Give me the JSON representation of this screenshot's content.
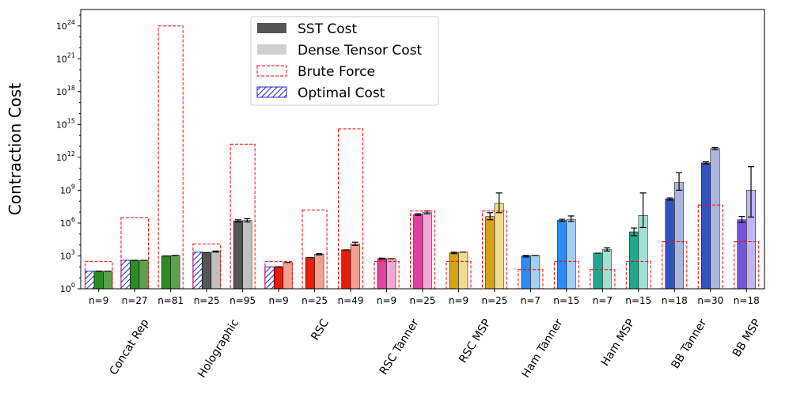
{
  "chart_data": {
    "type": "bar",
    "yscale": "log",
    "ylabel": "Contraction Cost",
    "ylim_exp": [
      0,
      25.5
    ],
    "yticks_exp": [
      0,
      3,
      6,
      9,
      12,
      15,
      18,
      21,
      24
    ],
    "ytick_labels": [
      "10",
      "10",
      "10",
      "10",
      "10",
      "10",
      "10",
      "10",
      "10"
    ],
    "ytick_sups": [
      "0",
      "3",
      "6",
      "9",
      "12",
      "15",
      "18",
      "21",
      "24"
    ],
    "legend": {
      "position": "upper-center",
      "entries": [
        {
          "label": "SST Cost",
          "style": "solid-dark"
        },
        {
          "label": "Dense Tensor Cost",
          "style": "solid-light"
        },
        {
          "label": "Brute Force",
          "style": "dashed-red"
        },
        {
          "label": "Optimal Cost",
          "style": "hatched-blue"
        }
      ]
    },
    "groups": [
      {
        "name": "Concat Rep",
        "color": "#2e8b22",
        "light": "#5fa050"
      },
      {
        "name": "Holographic",
        "color": "#555555",
        "light": "#c0c0c0"
      },
      {
        "name": "RSC",
        "color": "#e41e0a",
        "light": "#f4a090"
      },
      {
        "name": "RSC Tanner",
        "color": "#e0409f",
        "light": "#f2a6d4"
      },
      {
        "name": "RSC MSP",
        "color": "#d6a218",
        "light": "#efdc92"
      },
      {
        "name": "Ham Tanner",
        "color": "#2f8bf0",
        "light": "#a6cdf3"
      },
      {
        "name": "Ham MSP",
        "color": "#1fa88e",
        "light": "#a4dfd3"
      },
      {
        "name": "BB Tanner",
        "color": "#3355bb",
        "light": "#aab6df"
      },
      {
        "name": "BB MSP",
        "color": "#7455d8",
        "light": "#c2b5ee"
      }
    ],
    "categories": [
      {
        "n": "n=9",
        "group": "Concat Rep",
        "sst": 1.6,
        "sst_err": [
          1.6,
          1.6
        ],
        "dense": 1.6,
        "dense_err": null,
        "brute": 2.5,
        "optimal": 1.6
      },
      {
        "n": "n=27",
        "group": "Concat Rep",
        "sst": 2.6,
        "sst_err": null,
        "dense": 2.6,
        "dense_err": null,
        "brute": 6.5,
        "optimal": 2.6
      },
      {
        "n": "n=81",
        "group": "Concat Rep",
        "sst": 3.0,
        "sst_err": null,
        "dense": 3.05,
        "dense_err": null,
        "brute": 24.0,
        "optimal": null
      },
      {
        "n": "n=25",
        "group": "Holographic",
        "sst": 3.3,
        "sst_err": [
          3.3,
          3.3
        ],
        "dense": 3.4,
        "dense_err": [
          3.35,
          3.45
        ],
        "brute": 4.1,
        "optimal": 3.35
      },
      {
        "n": "n=95",
        "group": "Holographic",
        "sst": 6.2,
        "sst_err": [
          6.1,
          6.3
        ],
        "dense": 6.25,
        "dense_err": [
          6.1,
          6.4
        ],
        "brute": 13.2,
        "optimal": null
      },
      {
        "n": "n=9",
        "group": "RSC",
        "sst": 2.0,
        "sst_err": [
          2.0,
          2.0
        ],
        "dense": 2.4,
        "dense_err": null,
        "brute": 2.5,
        "optimal": 2.0
      },
      {
        "n": "n=25",
        "group": "RSC",
        "sst": 2.85,
        "sst_err": null,
        "dense": 3.15,
        "dense_err": [
          3.1,
          3.2
        ],
        "brute": 7.2,
        "optimal": null
      },
      {
        "n": "n=49",
        "group": "RSC",
        "sst": 3.55,
        "sst_err": null,
        "dense": 4.1,
        "dense_err": [
          3.95,
          4.25
        ],
        "brute": 14.6,
        "optimal": null
      },
      {
        "n": "n=9",
        "group": "RSC Tanner",
        "sst": 2.75,
        "sst_err": [
          2.7,
          2.8
        ],
        "dense": 2.75,
        "dense_err": null,
        "brute": 2.5,
        "optimal": null
      },
      {
        "n": "n=25",
        "group": "RSC Tanner",
        "sst": 6.8,
        "sst_err": [
          6.7,
          6.85
        ],
        "dense": 6.95,
        "dense_err": [
          6.85,
          7.1
        ],
        "brute": 7.1,
        "optimal": null
      },
      {
        "n": "n=9",
        "group": "RSC MSP",
        "sst": 3.3,
        "sst_err": [
          3.2,
          3.35
        ],
        "dense": 3.35,
        "dense_err": null,
        "brute": 2.5,
        "optimal": null
      },
      {
        "n": "n=25",
        "group": "RSC MSP",
        "sst": 6.6,
        "sst_err": [
          6.3,
          6.95
        ],
        "dense": 7.8,
        "dense_err": [
          6.95,
          8.75
        ],
        "brute": 7.1,
        "optimal": null
      },
      {
        "n": "n=7",
        "group": "Ham Tanner",
        "sst": 3.0,
        "sst_err": [
          2.9,
          3.05
        ],
        "dense": 3.05,
        "dense_err": null,
        "brute": 1.75,
        "optimal": null
      },
      {
        "n": "n=15",
        "group": "Ham Tanner",
        "sst": 6.25,
        "sst_err": [
          6.15,
          6.35
        ],
        "dense": 6.35,
        "dense_err": [
          6.15,
          6.65
        ],
        "brute": 2.5,
        "optimal": null
      },
      {
        "n": "n=7",
        "group": "Ham MSP",
        "sst": 3.25,
        "sst_err": null,
        "dense": 3.6,
        "dense_err": [
          3.45,
          3.75
        ],
        "brute": 1.75,
        "optimal": null
      },
      {
        "n": "n=15",
        "group": "Ham MSP",
        "sst": 5.2,
        "sst_err": [
          4.85,
          5.55
        ],
        "dense": 6.7,
        "dense_err": [
          5.6,
          8.75
        ],
        "brute": 2.5,
        "optimal": null
      },
      {
        "n": "n=18",
        "group": "BB Tanner",
        "sst": 8.2,
        "sst_err": [
          8.1,
          8.3
        ],
        "dense": 9.7,
        "dense_err": [
          9.0,
          10.6
        ],
        "brute": 4.3,
        "optimal": null
      },
      {
        "n": "n=30",
        "group": "BB Tanner",
        "sst": 11.5,
        "sst_err": [
          11.4,
          11.6
        ],
        "dense": 12.8,
        "dense_err": [
          12.7,
          12.9
        ],
        "brute": 7.65,
        "optimal": null
      },
      {
        "n": "n=18",
        "group": "BB MSP",
        "sst": 6.3,
        "sst_err": [
          6.05,
          6.6
        ],
        "dense": 9.0,
        "dense_err": [
          6.55,
          11.15
        ],
        "brute": 4.3,
        "optimal": null
      }
    ]
  }
}
